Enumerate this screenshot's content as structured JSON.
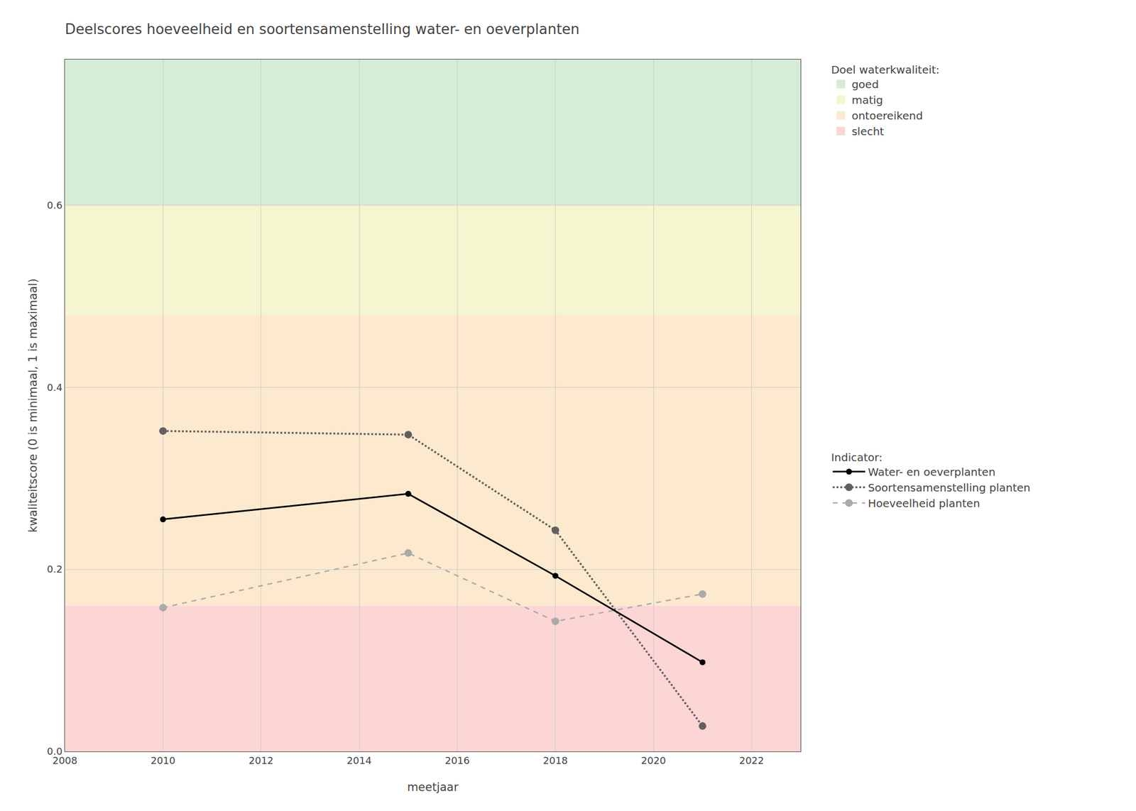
{
  "chart_data": {
    "type": "line",
    "title": "Deelscores hoeveelheid en soortensamenstelling water- en oeverplanten",
    "x_label": "meetjaar",
    "y_label": "kwaliteitscore (0 is minimaal, 1 is maximaal)",
    "x": [
      2010,
      2015,
      2018,
      2021
    ],
    "xlim": [
      2008,
      2023
    ],
    "xticks": [
      2008,
      2010,
      2012,
      2014,
      2016,
      2018,
      2020,
      2022
    ],
    "ylim": [
      0,
      0.76
    ],
    "yticks": [
      {
        "value": 0.0,
        "label": "0.0"
      },
      0.2,
      0.4,
      0.6
    ],
    "grid": true,
    "bands": {
      "title": "Doel waterkwaliteit:",
      "items": [
        {
          "name": "goed",
          "ymin": 0.6,
          "ymax": 0.76,
          "color": "#d5ecd6"
        },
        {
          "name": "matig",
          "ymin": 0.48,
          "ymax": 0.6,
          "color": "#f5f5d0"
        },
        {
          "name": "ontoereikend",
          "ymin": 0.16,
          "ymax": 0.48,
          "color": "#fce9ce"
        },
        {
          "name": "slecht",
          "ymin": 0.0,
          "ymax": 0.16,
          "color": "#fcd5d5"
        }
      ]
    },
    "legend_title": "Indicator:",
    "series": [
      {
        "name": "Water- en oeverplanten",
        "color": "#000000",
        "line_style": "solid",
        "marker": "circle",
        "values": [
          0.255,
          0.283,
          0.193,
          0.098
        ]
      },
      {
        "name": "Soortensamenstelling planten",
        "color": "#606060",
        "line_style": "dotted",
        "marker": "circle",
        "values": [
          0.352,
          0.348,
          0.243,
          0.028
        ]
      },
      {
        "name": "Hoeveelheid planten",
        "color": "#aaaaaa",
        "line_style": "dashed",
        "marker": "circle",
        "values": [
          0.158,
          0.218,
          0.143,
          0.173
        ]
      }
    ]
  }
}
